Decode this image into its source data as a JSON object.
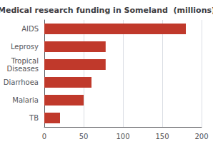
{
  "chart_data": {
    "type": "bar",
    "orientation": "horizontal",
    "title": "Medical research funding in Someland  (millions)",
    "categories": [
      "TB",
      "Malaria",
      "Diarrhoea",
      "Tropical\nDiseases",
      "Leprosy",
      "AIDS"
    ],
    "values": [
      20,
      50,
      60,
      78,
      78,
      180
    ],
    "color": "#c0392b",
    "xlim": [
      0,
      200
    ],
    "xticks": [
      0,
      50,
      100,
      150,
      200
    ],
    "grid": true
  }
}
